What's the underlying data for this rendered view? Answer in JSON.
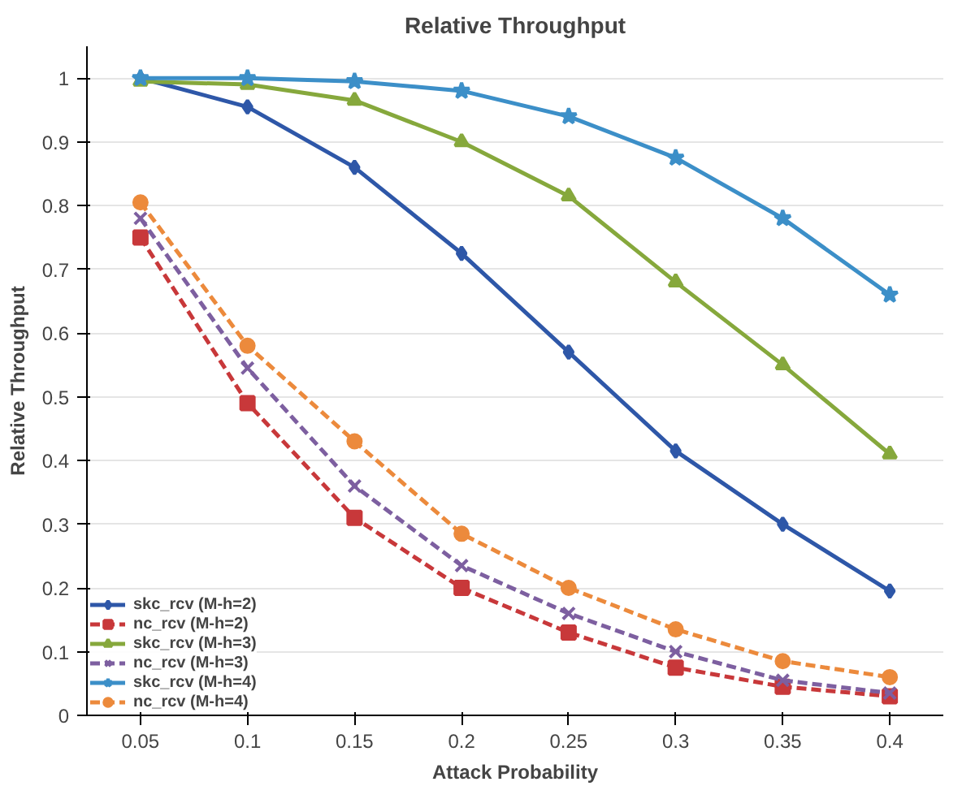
{
  "chart_data": {
    "type": "line",
    "title": "Relative Throughput",
    "xlabel": "Attack Probability",
    "ylabel": "Relative Throughput",
    "categories": [
      "0.05",
      "0.1",
      "0.15",
      "0.2",
      "0.25",
      "0.3",
      "0.35",
      "0.4"
    ],
    "ylim": [
      0,
      1.05
    ],
    "yticks": [
      0,
      0.1,
      0.2,
      0.3,
      0.4,
      0.5,
      0.6,
      0.7,
      0.8,
      0.9,
      1
    ],
    "grid": "y",
    "legend": "bottom left",
    "series": [
      {
        "name": "skc_rcv (M-h=2)",
        "color": "#2e57a8",
        "marker": "diamond",
        "line_style": "solid",
        "values": [
          1.0,
          0.955,
          0.86,
          0.725,
          0.57,
          0.415,
          0.3,
          0.195
        ]
      },
      {
        "name": "nc_rcv (M-h=2)",
        "color": "#c8383a",
        "marker": "square",
        "line_style": "dashed",
        "values": [
          0.75,
          0.49,
          0.31,
          0.2,
          0.13,
          0.075,
          0.045,
          0.03
        ]
      },
      {
        "name": "skc_rcv (M-h=3)",
        "color": "#86a83c",
        "marker": "triangle",
        "line_style": "solid",
        "values": [
          0.995,
          0.99,
          0.965,
          0.9,
          0.815,
          0.68,
          0.55,
          0.41
        ]
      },
      {
        "name": "nc_rcv (M-h=3)",
        "color": "#7d5fa0",
        "marker": "cross",
        "line_style": "dashed",
        "values": [
          0.78,
          0.545,
          0.36,
          0.235,
          0.16,
          0.1,
          0.055,
          0.035
        ]
      },
      {
        "name": "skc_rcv (M-h=4)",
        "color": "#3c8fc8",
        "marker": "star",
        "line_style": "solid",
        "values": [
          1.0,
          1.0,
          0.995,
          0.98,
          0.94,
          0.875,
          0.78,
          0.66
        ]
      },
      {
        "name": "nc_rcv (M-h=4)",
        "color": "#ec8a3c",
        "marker": "circle",
        "line_style": "dashed",
        "values": [
          0.805,
          0.58,
          0.43,
          0.285,
          0.2,
          0.135,
          0.085,
          0.06
        ]
      }
    ]
  }
}
